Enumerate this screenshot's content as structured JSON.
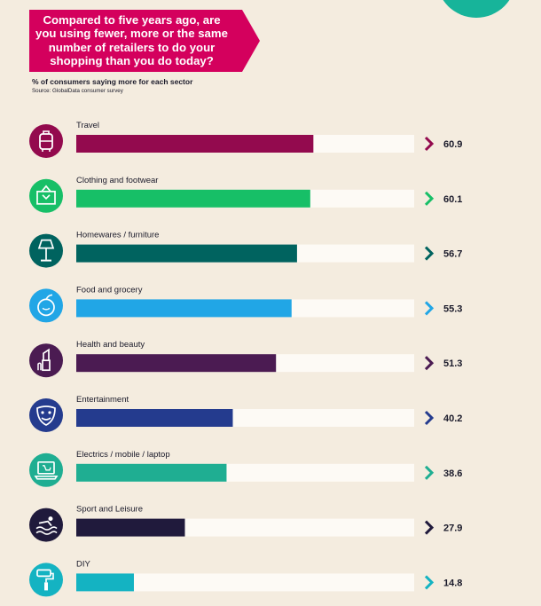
{
  "header": {
    "title": "Compared to five years ago, are you using fewer, more or the same number of retailers to do your shopping than you do today?",
    "subtitle": "% of consumers saying more for each sector",
    "source": "Source: GlobalData consumer survey"
  },
  "colors": {
    "banner": "#d4005d",
    "track": "#fdfaf5",
    "background": "#f4ecdf"
  },
  "chart_data": {
    "type": "bar",
    "orientation": "horizontal",
    "title": "Compared to five years ago, are you using fewer, more or the same number of retailers to do your shopping than you do today?",
    "subtitle": "% of consumers saying more for each sector",
    "xlim": [
      0,
      100
    ],
    "grid": false,
    "categories": [
      "Travel",
      "Clothing and footwear",
      "Homewares / furniture",
      "Food and grocery",
      "Health and beauty",
      "Entertainment",
      "Electrics / mobile / laptop",
      "Sport and Leisure",
      "DIY"
    ],
    "values": [
      60.9,
      60.1,
      56.7,
      55.3,
      51.3,
      40.2,
      38.6,
      27.9,
      14.8
    ],
    "value_labels": [
      "60.9",
      "60.1",
      "56.7",
      "55.3",
      "51.3",
      "40.2",
      "38.6",
      "27.9",
      "14.8"
    ],
    "bar_colors": [
      "#930a4e",
      "#17bf67",
      "#00635f",
      "#21a6e6",
      "#4b1b52",
      "#243b8e",
      "#1fae92",
      "#201a3c",
      "#14b3c2"
    ],
    "icons": [
      "suitcase-icon",
      "shirt-icon",
      "lamp-icon",
      "apple-icon",
      "lipstick-icon",
      "theatre-masks-icon",
      "laptop-icon",
      "swimmer-icon",
      "paint-roller-icon"
    ]
  }
}
